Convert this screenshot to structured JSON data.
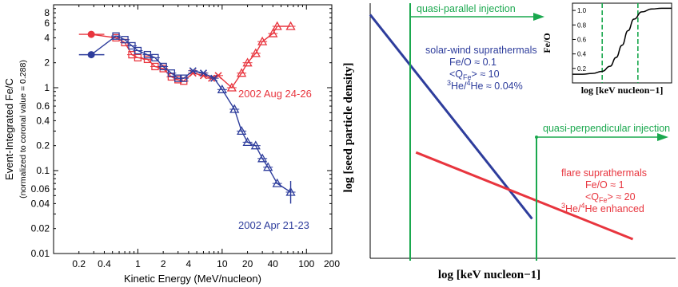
{
  "chart_data": [
    {
      "type": "line",
      "scale": "log-log",
      "xlabel": "Kinetic Energy (MeV/nucleon)",
      "ylabel": "Event-Integrated Fe/C",
      "ylabel2": "(normalized to coronal value = 0.288)",
      "xlim": [
        0.1,
        200
      ],
      "ylim": [
        0.01,
        10
      ],
      "xticks": [
        0.2,
        0.4,
        1,
        2,
        4,
        10,
        20,
        40,
        100,
        200
      ],
      "xtick_labels": [
        "0.2",
        "0.4",
        "1",
        "2",
        "4",
        "10",
        "20",
        "40",
        "100",
        "200"
      ],
      "yticks": [
        0.01,
        0.02,
        0.04,
        0.06,
        0.1,
        0.2,
        0.4,
        0.6,
        1,
        2,
        4,
        6,
        8
      ],
      "ytick_labels": [
        "0.01",
        "0.02",
        "0.04",
        "0.06",
        "0.1",
        "0.2",
        "0.4",
        "0.6",
        "1",
        "2",
        "4",
        "6",
        "8"
      ],
      "series": [
        {
          "name": "2002 Aug 24-26",
          "color": "#e8353e",
          "points": [
            {
              "x": 0.28,
              "y": 4.4,
              "m": "circle",
              "xerr": [
                0.2,
                0.4
              ]
            },
            {
              "x": 0.55,
              "y": 4.0,
              "m": "square"
            },
            {
              "x": 0.7,
              "y": 3.5,
              "m": "square"
            },
            {
              "x": 0.85,
              "y": 2.5,
              "m": "square"
            },
            {
              "x": 1.0,
              "y": 2.3,
              "m": "square"
            },
            {
              "x": 1.3,
              "y": 2.2,
              "m": "square"
            },
            {
              "x": 1.6,
              "y": 1.8,
              "m": "square"
            },
            {
              "x": 2.0,
              "y": 1.7,
              "m": "square"
            },
            {
              "x": 2.5,
              "y": 1.35,
              "m": "square"
            },
            {
              "x": 3.0,
              "y": 1.25,
              "m": "square"
            },
            {
              "x": 3.5,
              "y": 1.2,
              "m": "square"
            },
            {
              "x": 4.5,
              "y": 1.5,
              "m": "x"
            },
            {
              "x": 6.0,
              "y": 1.4,
              "m": "x"
            },
            {
              "x": 7.5,
              "y": 1.3,
              "m": "x"
            },
            {
              "x": 9.0,
              "y": 1.4,
              "m": "x"
            },
            {
              "x": 13.0,
              "y": 1.0,
              "m": "triangle"
            },
            {
              "x": 17.0,
              "y": 1.5,
              "m": "triangle"
            },
            {
              "x": 20.0,
              "y": 2.0,
              "m": "triangle"
            },
            {
              "x": 25.0,
              "y": 2.6,
              "m": "triangle"
            },
            {
              "x": 30.0,
              "y": 3.6,
              "m": "triangle"
            },
            {
              "x": 40.0,
              "y": 4.5,
              "m": "triangle"
            },
            {
              "x": 45.0,
              "y": 5.5,
              "m": "triangle"
            },
            {
              "x": 65.0,
              "y": 5.5,
              "m": "triangle"
            }
          ]
        },
        {
          "name": "2002 Apr 21-23",
          "color": "#2e3d9c",
          "points": [
            {
              "x": 0.28,
              "y": 2.5,
              "m": "circle",
              "xerr": [
                0.2,
                0.4
              ]
            },
            {
              "x": 0.55,
              "y": 4.2,
              "m": "square"
            },
            {
              "x": 0.7,
              "y": 3.8,
              "m": "square"
            },
            {
              "x": 0.85,
              "y": 3.2,
              "m": "square"
            },
            {
              "x": 1.0,
              "y": 2.8,
              "m": "square"
            },
            {
              "x": 1.3,
              "y": 2.5,
              "m": "square"
            },
            {
              "x": 1.6,
              "y": 2.3,
              "m": "square"
            },
            {
              "x": 2.0,
              "y": 1.8,
              "m": "square"
            },
            {
              "x": 2.5,
              "y": 1.5,
              "m": "square"
            },
            {
              "x": 3.0,
              "y": 1.3,
              "m": "square"
            },
            {
              "x": 3.5,
              "y": 1.3,
              "m": "square"
            },
            {
              "x": 4.5,
              "y": 1.6,
              "m": "x"
            },
            {
              "x": 6.0,
              "y": 1.5,
              "m": "x"
            },
            {
              "x": 8.0,
              "y": 1.3,
              "m": "x"
            },
            {
              "x": 10.0,
              "y": 0.95,
              "m": "triangle"
            },
            {
              "x": 14.0,
              "y": 0.55,
              "m": "triangle"
            },
            {
              "x": 17.0,
              "y": 0.3,
              "m": "triangle"
            },
            {
              "x": 20.0,
              "y": 0.22,
              "m": "triangle"
            },
            {
              "x": 25.0,
              "y": 0.2,
              "m": "triangle"
            },
            {
              "x": 30.0,
              "y": 0.14,
              "m": "triangle"
            },
            {
              "x": 35.0,
              "y": 0.11,
              "m": "triangle"
            },
            {
              "x": 45.0,
              "y": 0.07,
              "m": "triangle"
            },
            {
              "x": 65.0,
              "y": 0.055,
              "m": "triangle",
              "yerr": [
                0.04,
                0.075
              ]
            }
          ]
        }
      ]
    },
    {
      "type": "line",
      "xlabel": "log [keV nucleon−1]",
      "ylabel": "log [seed particle density]",
      "xlim": [
        0,
        100
      ],
      "ylim": [
        0,
        100
      ],
      "series": [
        {
          "name": "solar-wind suprathermals",
          "color": "#2e3d9c",
          "x": [
            0,
            53
          ],
          "y": [
            95.5,
            15.5
          ],
          "annotation": [
            "solar-wind suprathermals",
            "Fe/O ≈ 0.1",
            "<Q_Fe> ≈ 10",
            "3He/4He ≈ 0.04%"
          ]
        },
        {
          "name": "flare suprathermals",
          "color": "#e8353e",
          "x": [
            15,
            86
          ],
          "y": [
            41.5,
            7.5
          ],
          "annotation": [
            "flare suprathermals",
            "Fe/O ≈ 1",
            "<Q_Fe> ≈ 20",
            "3He/4He enhanced"
          ]
        }
      ],
      "annotations": [
        {
          "label": "quasi-parallel injection",
          "color": "#1aa84e",
          "x": 8.5
        },
        {
          "label": "quasi-perpendicular injection",
          "color": "#1aa84e",
          "x": 56.5
        }
      ],
      "inset": {
        "type": "line",
        "xlabel": "log [keV nucleon−1]",
        "ylabel": "Fe/O",
        "ylim": [
          0,
          1.1
        ],
        "yticks": [
          0.2,
          0.4,
          0.6,
          0.8,
          1.0
        ],
        "ytick_labels": [
          "0.2",
          "0.4",
          "0.6",
          "0.8",
          "1.0"
        ],
        "curve": {
          "x": [
            0,
            10,
            20,
            30,
            38,
            44,
            50,
            56,
            62,
            70,
            80,
            90,
            100
          ],
          "y": [
            0.12,
            0.12,
            0.13,
            0.16,
            0.23,
            0.35,
            0.52,
            0.72,
            0.88,
            0.98,
            1.02,
            1.03,
            1.03
          ]
        },
        "dashed_x": [
          30,
          66
        ],
        "dashed_color": "#1aa84e"
      }
    }
  ],
  "labels": {
    "aug": "2002 Aug 24-26",
    "apr": "2002 Apr 21-23",
    "sw_title": "solar-wind suprathermals",
    "sw_feo": "Fe/O ≈ 0.1",
    "sw_q_a": "<Q",
    "sw_q_sub": "Fe",
    "sw_q_b": "> ≈ 10",
    "sw_he_a": "3",
    "sw_he_b": "He/",
    "sw_he_c": "4",
    "sw_he_d": "He ≈ 0.04%",
    "fl_title": "flare suprathermals",
    "fl_feo": "Fe/O ≈ 1",
    "fl_q_a": "<Q",
    "fl_q_sub": "Fe",
    "fl_q_b": "> ≈ 20",
    "fl_he_a": "3",
    "fl_he_b": "He/",
    "fl_he_c": "4",
    "fl_he_d": "He enhanced",
    "qpar": "quasi-parallel injection",
    "qperp": "quasi-perpendicular injection"
  }
}
